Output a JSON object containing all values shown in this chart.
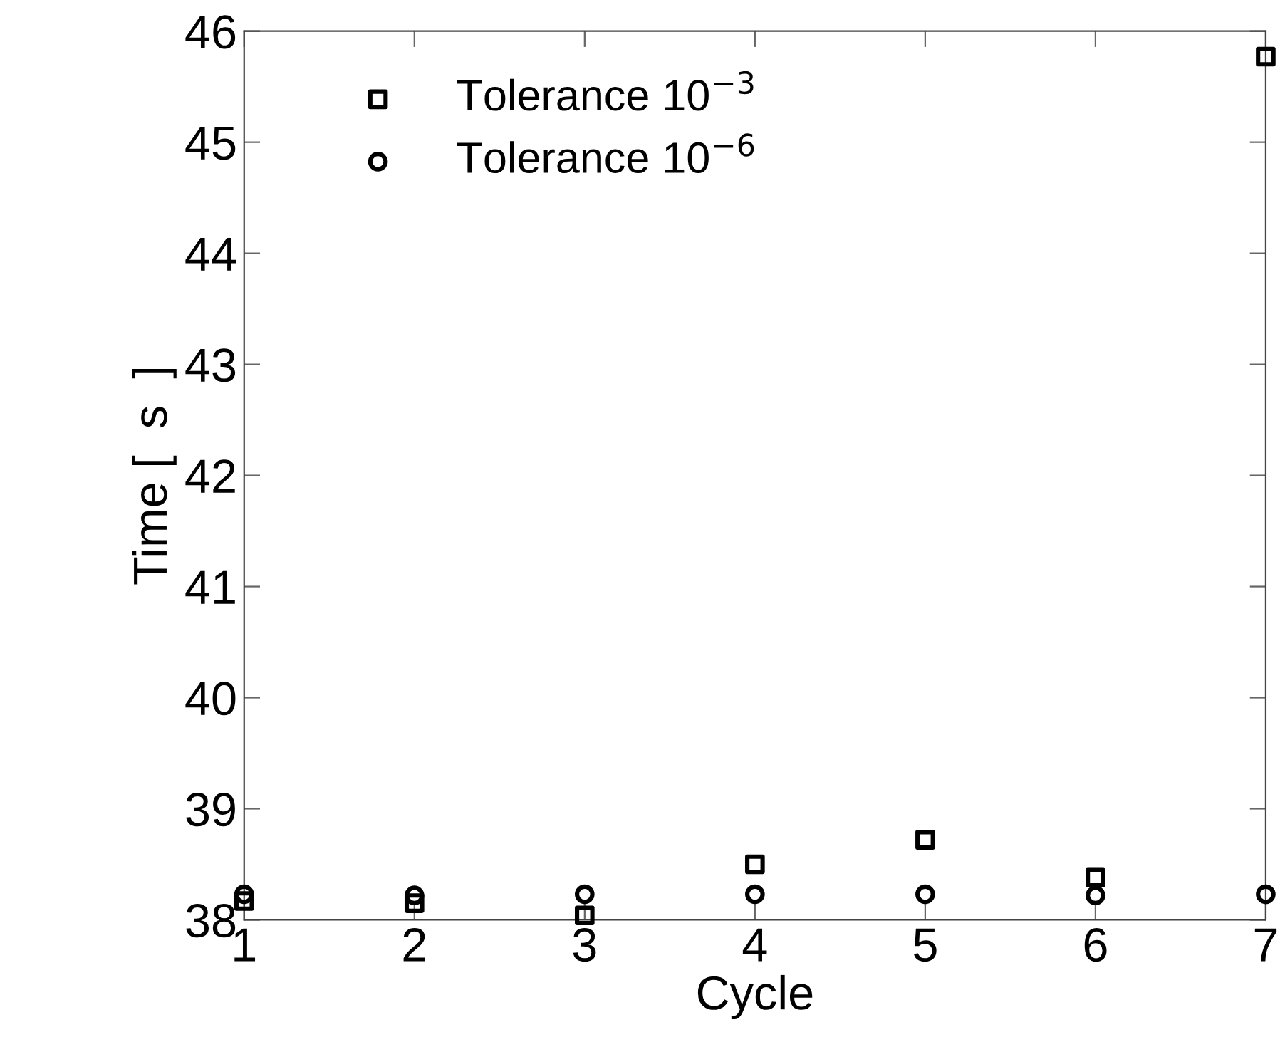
{
  "chart_data": {
    "type": "scatter",
    "xlabel": "Cycle",
    "ylabel": "Time [  s  ]",
    "x": [
      1,
      2,
      3,
      4,
      5,
      6,
      7
    ],
    "series": [
      {
        "name": "Tolerance 10$^{−3}$",
        "color": "#000000",
        "marker": "square",
        "values": [
          38.17,
          38.15,
          38.04,
          38.5,
          38.72,
          38.38,
          45.77
        ]
      },
      {
        "name": "Tolerance 10$^{−6}$",
        "color": "#000000",
        "marker": "circle",
        "values": [
          38.23,
          38.22,
          38.23,
          38.23,
          38.23,
          38.22,
          38.23
        ]
      }
    ],
    "xlim": [
      1,
      7
    ],
    "xticks": [
      1,
      2,
      3,
      4,
      5,
      6,
      7
    ],
    "ylim": [
      38,
      46
    ],
    "yticks": [
      38,
      39,
      40,
      41,
      42,
      43,
      44,
      45,
      46
    ],
    "grid": false,
    "legend": "top left"
  }
}
